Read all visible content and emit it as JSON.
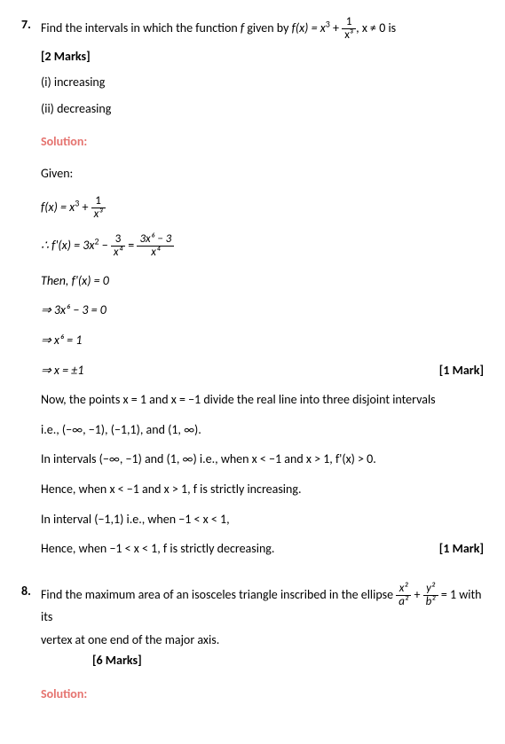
{
  "q7": {
    "number": "7.",
    "prompt_prefix": "Find the intervals in which the function ",
    "f_var": "f",
    "given_by": " given by ",
    "fx": "f(x) = x",
    "cube": "3",
    "plus": " + ",
    "frac_num": "1",
    "frac_den": "x³",
    "comma_cond": ", x ≠ 0 is",
    "marks": "[2 Marks]",
    "opt1": "(i) increasing",
    "opt2": "(ii) decreasing",
    "solution_label": "Solution:",
    "given_label": "Given:",
    "eq1_lhs": "f(x) = x",
    "eq1_num": "1",
    "eq1_den": "x³",
    "eq2_prefix": "∴ f'(x) = 3x",
    "eq2_exp": "2",
    "eq2_minus": " − ",
    "eq2_frac1_num": "3",
    "eq2_frac1_den": "x⁴",
    "eq2_eq": " = ",
    "eq2_frac2_num": "3x⁶ − 3",
    "eq2_frac2_den": "x⁴",
    "then_line": "Then, f'(x) = 0",
    "imp1": "⇒ 3x⁶ − 3 = 0",
    "imp2": "⇒ x⁶ = 1",
    "imp3": "⇒ x = ±1",
    "mark1": "[1 Mark]",
    "now_line": "Now, the points x = 1 and x = −1 divide the real line into three disjoint intervals",
    "ie_line": "i.e., (−∞, −1), (−1,1), and (1, ∞).",
    "interval1": "In intervals (−∞, −1) and (1, ∞) i.e., when x < −1 and x > 1, f'(x) > 0.",
    "hence1": "Hence, when x < −1 and x > 1, f is strictly increasing.",
    "interval2": "In interval (−1,1) i.e., when −1 < x < 1,",
    "hence2": "Hence, when −1 < x < 1, f is strictly decreasing.",
    "mark2": "[1 Mark]"
  },
  "q8": {
    "number": "8.",
    "prompt_p1": "Find the maximum area of an isosceles triangle inscribed in the ellipse ",
    "frac1_num": "x²",
    "frac1_den": "a²",
    "plus": " + ",
    "frac2_num": "y²",
    "frac2_den": "b²",
    "eq_one": " = 1 with its",
    "prompt_p2": "vertex at one end of the major axis.",
    "marks": "[6 Marks]",
    "solution_label": "Solution:"
  }
}
